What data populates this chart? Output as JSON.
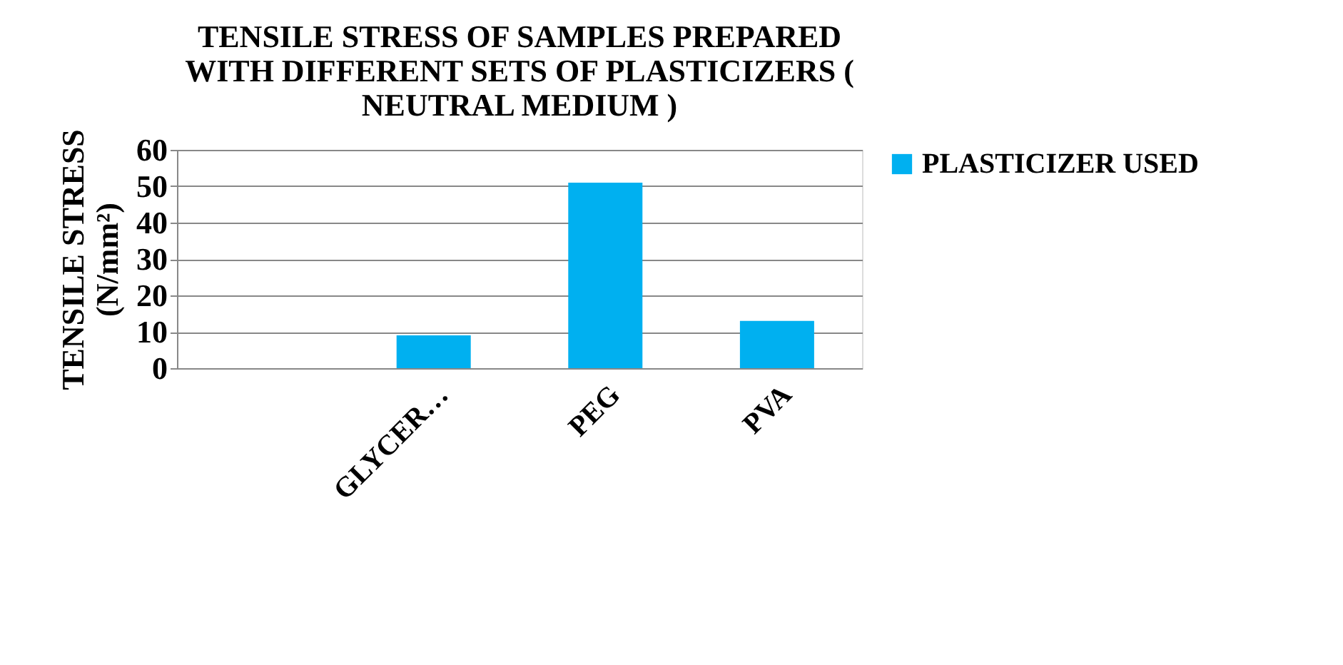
{
  "chart_data": {
    "type": "bar",
    "title": "TENSILE STRESS OF SAMPLES PREPARED WITH DIFFERENT SETS OF PLASTICIZERS ( NEUTRAL MEDIUM )",
    "ylabel": "TENSILE STRESS (N/mm²)",
    "categories": [
      null,
      "GLYCER…",
      "PEG",
      "PVA"
    ],
    "series": [
      {
        "name": "PLASTICIZER USED",
        "color": "#00b0f0",
        "values": [
          null,
          9,
          51,
          13
        ]
      }
    ],
    "ylim": [
      0,
      60
    ],
    "yticks": [
      0,
      10,
      20,
      30,
      40,
      50,
      60
    ],
    "grid": "y",
    "legend": "right"
  }
}
